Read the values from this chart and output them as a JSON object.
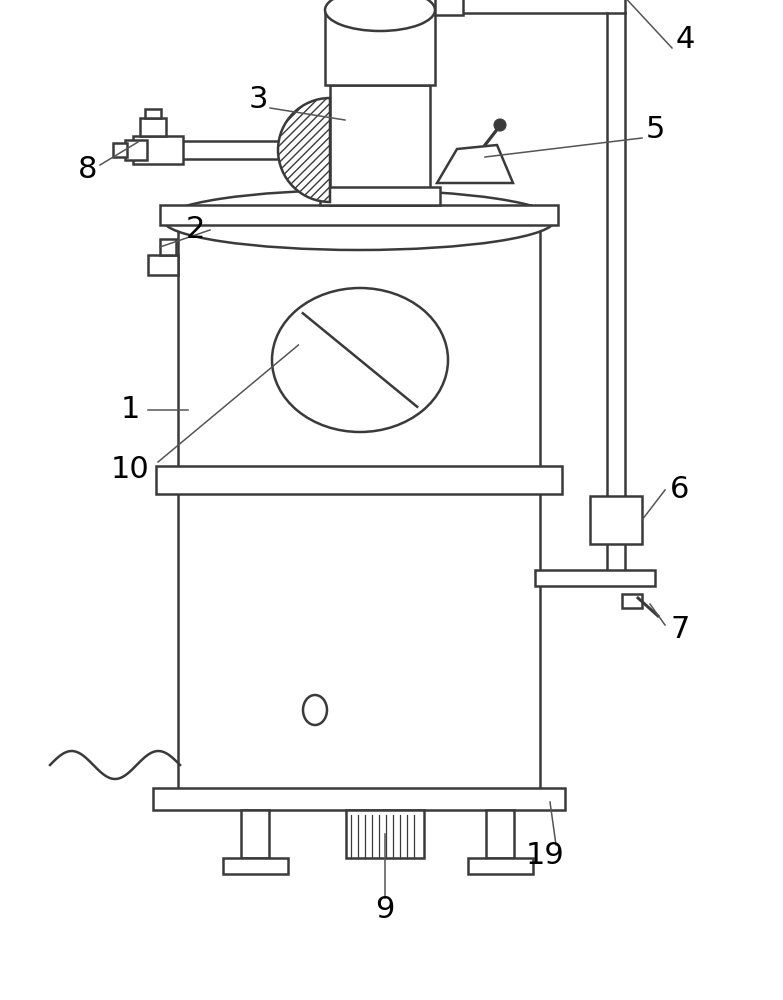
{
  "bg_color": "#ffffff",
  "line_color": "#3a3a3a",
  "label_color": "#000000",
  "figsize": [
    7.83,
    10.0
  ],
  "dpi": 100
}
